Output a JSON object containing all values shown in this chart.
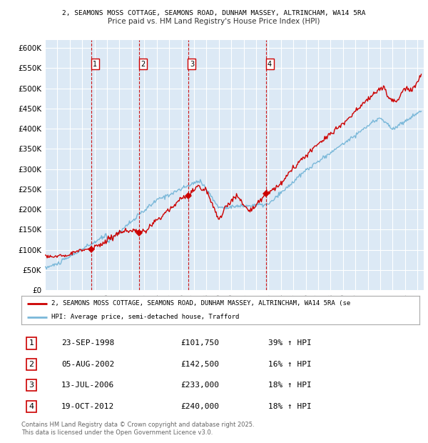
{
  "title1": "2, SEAMONS MOSS COTTAGE, SEAMONS ROAD, DUNHAM MASSEY, ALTRINCHAM, WA14 5RA",
  "title2": "Price paid vs. HM Land Registry's House Price Index (HPI)",
  "xlim_start": 1995.0,
  "xlim_end": 2025.5,
  "ylim": [
    0,
    620000
  ],
  "yticks": [
    0,
    50000,
    100000,
    150000,
    200000,
    250000,
    300000,
    350000,
    400000,
    450000,
    500000,
    550000,
    600000
  ],
  "bg_color": "#dce9f5",
  "grid_color": "#ffffff",
  "sale_line_color": "#cc0000",
  "hpi_line_color": "#7ab8d9",
  "vline_color": "#cc0000",
  "purchases": [
    {
      "num": 1,
      "date_x": 1998.73,
      "price": 101750
    },
    {
      "num": 2,
      "date_x": 2002.59,
      "price": 142500
    },
    {
      "num": 3,
      "date_x": 2006.53,
      "price": 233000
    },
    {
      "num": 4,
      "date_x": 2012.8,
      "price": 240000
    }
  ],
  "table_rows": [
    {
      "num": 1,
      "date": "23-SEP-1998",
      "price": "£101,750",
      "change": "39% ↑ HPI"
    },
    {
      "num": 2,
      "date": "05-AUG-2002",
      "price": "£142,500",
      "change": "16% ↑ HPI"
    },
    {
      "num": 3,
      "date": "13-JUL-2006",
      "price": "£233,000",
      "change": "18% ↑ HPI"
    },
    {
      "num": 4,
      "date": "19-OCT-2012",
      "price": "£240,000",
      "change": "18% ↑ HPI"
    }
  ],
  "legend_sale": "2, SEAMONS MOSS COTTAGE, SEAMONS ROAD, DUNHAM MASSEY, ALTRINCHAM, WA14 5RA (se",
  "legend_hpi": "HPI: Average price, semi-detached house, Trafford",
  "footer": "Contains HM Land Registry data © Crown copyright and database right 2025.\nThis data is licensed under the Open Government Licence v3.0."
}
